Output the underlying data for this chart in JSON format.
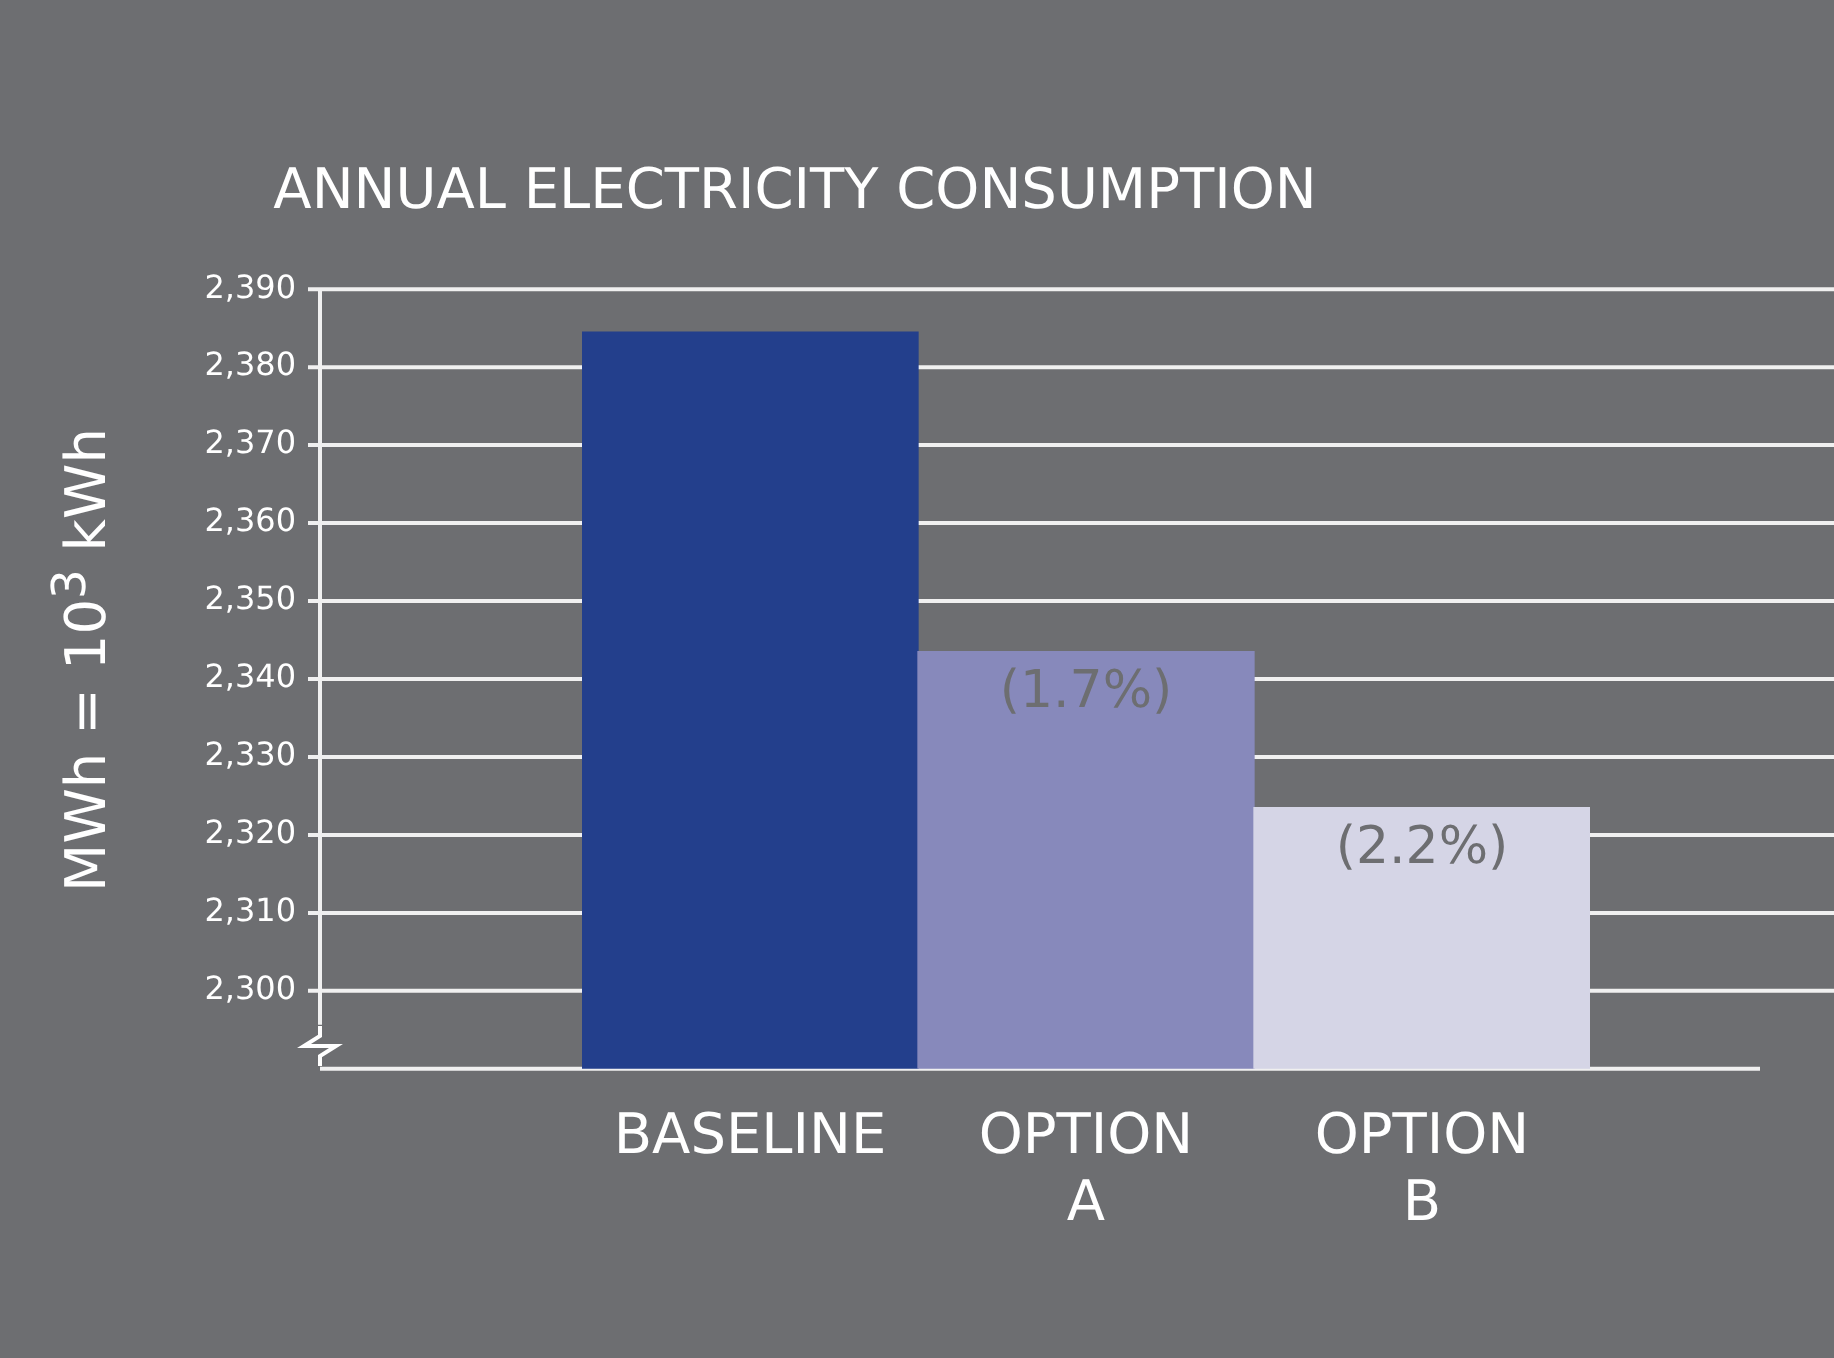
{
  "chart_data": {
    "type": "bar",
    "title": "ANNUAL ELECTRICITY CONSUMPTION",
    "ylabel": "MWh = 10$^{3}$ kWh",
    "categories": [
      "BASELINE",
      "OPTION A",
      "OPTION B"
    ],
    "values": [
      2384.5,
      2343.5,
      2323.5
    ],
    "colors": [
      "#233f8c",
      "#8789bb",
      "#d5d5e6"
    ],
    "annotations": [
      {
        "text": "(1.7%)",
        "x": "OPTION A",
        "y": 2343.5
      },
      {
        "text": "(2.2%)",
        "x": "OPTION B",
        "y": 2323.5
      }
    ],
    "ylim": [
      2290,
      2390
    ],
    "yticks": [
      {
        "value": 2300,
        "label": "2,300"
      },
      {
        "value": 2310,
        "label": "2,310"
      },
      {
        "value": 2320,
        "label": "2,320"
      },
      {
        "value": 2330,
        "label": "2,330"
      },
      {
        "value": 2340,
        "label": "2,340"
      },
      {
        "value": 2350,
        "label": "2,350"
      },
      {
        "value": 2360,
        "label": "2,360"
      },
      {
        "value": 2370,
        "label": "2,370"
      },
      {
        "value": 2380,
        "label": "2,380"
      },
      {
        "value": 2390,
        "label": "2,390"
      }
    ],
    "grid": "y",
    "legend": false
  }
}
